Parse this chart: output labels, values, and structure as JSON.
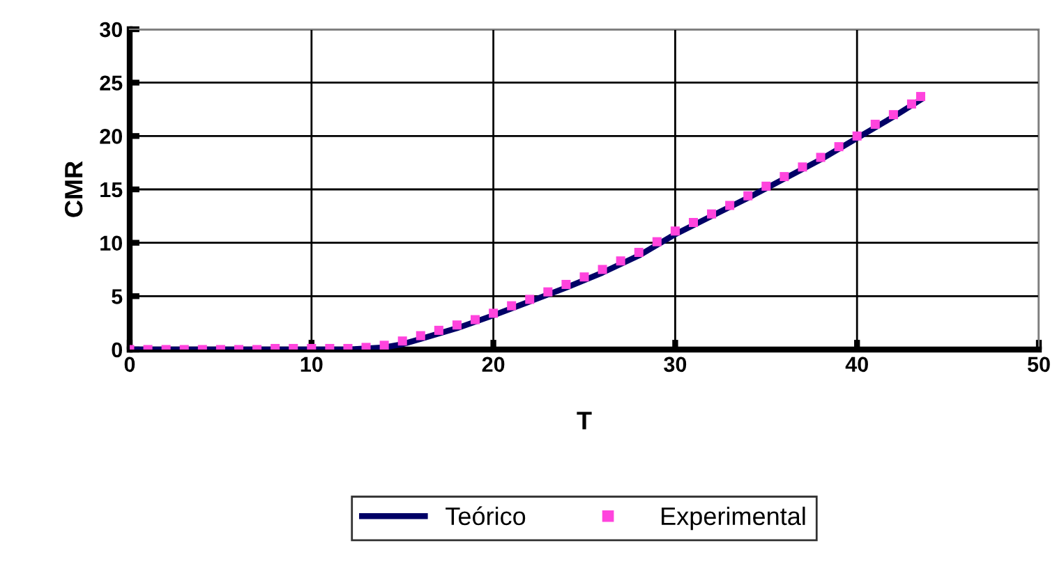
{
  "chart_data": {
    "type": "line",
    "xlabel": "T",
    "ylabel": "CMR",
    "xlim": [
      0,
      50
    ],
    "xticks": [
      0,
      10,
      20,
      30,
      40,
      50
    ],
    "ylim": [
      0,
      30
    ],
    "yticks": [
      0,
      5,
      10,
      15,
      20,
      25,
      30
    ],
    "grid": true,
    "legend": "bottom",
    "series": [
      {
        "name": "Teórico",
        "color": "#000066",
        "marker": "none",
        "line_style": "solid",
        "x": [
          0,
          5,
          10,
          12,
          13,
          14,
          15,
          16,
          17,
          18,
          19,
          20,
          22,
          24,
          26,
          28,
          30,
          32,
          34,
          36,
          38,
          40,
          42,
          43.5
        ],
        "values": [
          0,
          0,
          0,
          0,
          0.1,
          0.2,
          0.5,
          1.0,
          1.5,
          2.0,
          2.6,
          3.2,
          4.5,
          5.8,
          7.2,
          8.8,
          10.8,
          12.5,
          14.2,
          16.0,
          17.8,
          19.8,
          21.8,
          23.4
        ]
      },
      {
        "name": "Experimental",
        "type": "scatter",
        "color": "#ff44dd",
        "marker": "square",
        "x": [
          0,
          1,
          2,
          3,
          4,
          5,
          6,
          7,
          8,
          9,
          10,
          11,
          12,
          13,
          14,
          15,
          16,
          17,
          18,
          19,
          20,
          21,
          22,
          23,
          24,
          25,
          26,
          27,
          28,
          29,
          30,
          31,
          32,
          33,
          34,
          35,
          36,
          37,
          38,
          39,
          40,
          41,
          42,
          43,
          43.5
        ],
        "values": [
          0,
          0,
          0,
          0,
          0,
          0,
          0,
          0,
          0.1,
          0.1,
          0.1,
          0.1,
          0.1,
          0.2,
          0.4,
          0.8,
          1.3,
          1.8,
          2.3,
          2.8,
          3.4,
          4.1,
          4.7,
          5.4,
          6.1,
          6.8,
          7.5,
          8.3,
          9.1,
          10.1,
          11.1,
          11.9,
          12.7,
          13.5,
          14.4,
          15.3,
          16.2,
          17.1,
          18.0,
          19.0,
          20.0,
          21.1,
          22.0,
          23.0,
          23.7
        ]
      }
    ]
  }
}
